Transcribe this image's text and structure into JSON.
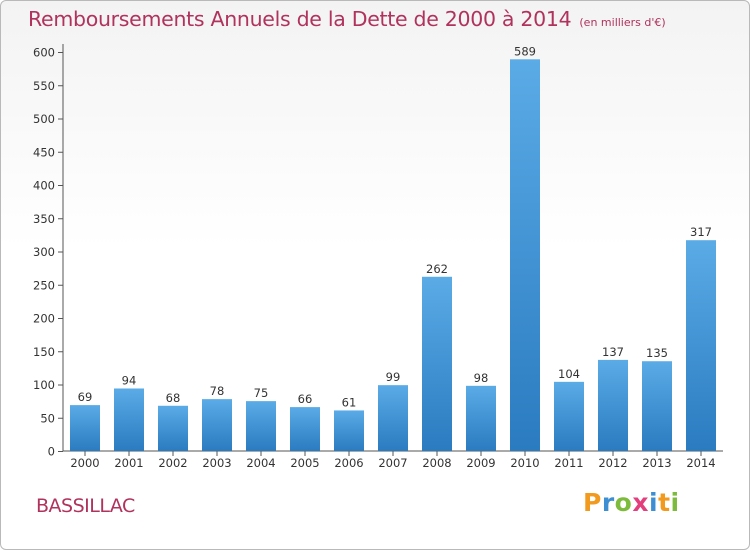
{
  "chart_data": {
    "type": "bar",
    "title": "Remboursements Annuels de la Dette de 2000 à 2014",
    "subtitle": "(en milliers d'€)",
    "categories": [
      "2000",
      "2001",
      "2002",
      "2003",
      "2004",
      "2005",
      "2006",
      "2007",
      "2008",
      "2009",
      "2010",
      "2011",
      "2012",
      "2013",
      "2014"
    ],
    "values": [
      69,
      94,
      68,
      78,
      75,
      66,
      61,
      99,
      262,
      98,
      589,
      104,
      137,
      135,
      317
    ],
    "ylim": [
      0,
      600
    ],
    "yticks": [
      0,
      50,
      100,
      150,
      200,
      250,
      300,
      350,
      400,
      450,
      500,
      550,
      600
    ],
    "xlabel": "",
    "ylabel": "",
    "grid": false,
    "bar_color": "#5aabe6",
    "bar_color_dark": "#2a7bc0"
  },
  "footer": {
    "town": "BASSILLAC",
    "logo_letters": [
      "P",
      "r",
      "o",
      "x",
      "i",
      "t",
      "i"
    ],
    "logo_colors": [
      "#f29a1d",
      "#3c8fd3",
      "#7dbb3c",
      "#e23f7c",
      "#3c8fd3",
      "#f29a1d",
      "#7dbb3c"
    ]
  }
}
